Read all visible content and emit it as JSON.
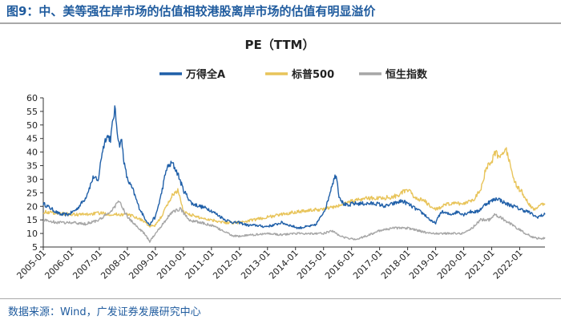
{
  "figure": {
    "title": "图9：中、美等强在岸市场的估值相较港股离岸市场的估值有明显溢价",
    "source": "数据来源：Wind，广发证券发展研究中心"
  },
  "colors": {
    "series_a": "#1f5fa8",
    "series_sp500": "#e8c45a",
    "series_hsi": "#a6a6a6",
    "accent": "#1f5b9e"
  },
  "chart_data": {
    "type": "line",
    "title": "PE（TTM）",
    "xlabel": "",
    "ylabel": "",
    "xlim": [
      2005.0,
      2022.9
    ],
    "ylim": [
      5,
      60
    ],
    "yticks": [
      5,
      10,
      15,
      20,
      25,
      30,
      35,
      40,
      45,
      50,
      55,
      60
    ],
    "xticks": [
      "2005-01",
      "2006-01",
      "2007-01",
      "2008-01",
      "2009-01",
      "2010-01",
      "2011-01",
      "2012-01",
      "2013-01",
      "2014-01",
      "2015-01",
      "2016-01",
      "2017-01",
      "2018-01",
      "2019-01",
      "2020-01",
      "2021-01",
      "2022-01"
    ],
    "grid": false,
    "legend_position": "top",
    "series": [
      {
        "name": "万得全A",
        "x": [
          2005.0,
          2005.3,
          2005.6,
          2005.9,
          2006.2,
          2006.5,
          2006.8,
          2006.95,
          2007.1,
          2007.25,
          2007.4,
          2007.55,
          2007.7,
          2007.8,
          2007.9,
          2008.0,
          2008.2,
          2008.4,
          2008.6,
          2008.8,
          2008.9,
          2009.0,
          2009.2,
          2009.4,
          2009.6,
          2009.8,
          2010.0,
          2010.3,
          2010.6,
          2010.9,
          2011.2,
          2011.5,
          2011.8,
          2012.0,
          2012.3,
          2012.6,
          2012.9,
          2013.2,
          2013.5,
          2013.8,
          2014.1,
          2014.4,
          2014.7,
          2014.9,
          2015.1,
          2015.3,
          2015.45,
          2015.55,
          2015.7,
          2015.9,
          2016.0,
          2016.3,
          2016.6,
          2016.9,
          2017.2,
          2017.5,
          2017.8,
          2018.0,
          2018.3,
          2018.6,
          2018.9,
          2019.0,
          2019.2,
          2019.5,
          2019.8,
          2020.0,
          2020.2,
          2020.5,
          2020.8,
          2021.0,
          2021.2,
          2021.5,
          2021.8,
          2022.0,
          2022.3,
          2022.6,
          2022.9
        ],
        "values": [
          21,
          19,
          17,
          17,
          19,
          23,
          31,
          29,
          40,
          46,
          45,
          56,
          43,
          44,
          35,
          30,
          26,
          20,
          16,
          13,
          15,
          16,
          24,
          34,
          36,
          32,
          26,
          21,
          20,
          19,
          17,
          15,
          14,
          14,
          13,
          13,
          12.5,
          13,
          14,
          13,
          12,
          12.5,
          13,
          16,
          20,
          28,
          32,
          24,
          21,
          20,
          21,
          21,
          21,
          21,
          20,
          21,
          22,
          21,
          19,
          17,
          14,
          14,
          18,
          17,
          18,
          17,
          18,
          18,
          21,
          22,
          23,
          21,
          20,
          19,
          18,
          16,
          17
        ]
      },
      {
        "name": "标普500",
        "x": [
          2005.0,
          2005.5,
          2006.0,
          2006.5,
          2007.0,
          2007.5,
          2008.0,
          2008.3,
          2008.6,
          2008.8,
          2009.0,
          2009.2,
          2009.4,
          2009.6,
          2009.8,
          2010.0,
          2010.5,
          2011.0,
          2011.5,
          2012.0,
          2012.5,
          2013.0,
          2013.5,
          2014.0,
          2014.5,
          2015.0,
          2015.5,
          2016.0,
          2016.5,
          2017.0,
          2017.5,
          2018.0,
          2018.3,
          2018.6,
          2018.9,
          2019.0,
          2019.5,
          2020.0,
          2020.2,
          2020.4,
          2020.6,
          2020.8,
          2021.0,
          2021.1,
          2021.3,
          2021.5,
          2021.7,
          2021.9,
          2022.1,
          2022.3,
          2022.5,
          2022.7,
          2022.9
        ],
        "values": [
          18,
          17.5,
          17,
          17,
          17.5,
          17,
          17,
          16,
          14.5,
          12.5,
          13,
          16,
          20,
          24,
          26,
          18,
          16,
          15,
          14,
          14,
          15,
          16,
          17,
          18,
          18.5,
          19,
          20,
          22,
          23,
          23,
          23.5,
          26,
          23,
          22,
          19,
          19,
          21,
          21,
          22,
          23,
          26,
          34,
          36,
          40,
          38,
          42,
          33,
          27,
          25,
          21,
          19,
          20,
          21
        ]
      },
      {
        "name": "恒生指数",
        "x": [
          2005.0,
          2005.5,
          2006.0,
          2006.5,
          2007.0,
          2007.4,
          2007.7,
          2007.85,
          2008.0,
          2008.3,
          2008.6,
          2008.8,
          2009.0,
          2009.3,
          2009.6,
          2009.9,
          2010.2,
          2010.6,
          2011.0,
          2011.4,
          2011.8,
          2012.0,
          2012.5,
          2013.0,
          2013.5,
          2014.0,
          2014.5,
          2015.0,
          2015.3,
          2015.6,
          2015.9,
          2016.2,
          2016.5,
          2017.0,
          2017.5,
          2018.0,
          2018.4,
          2018.8,
          2019.2,
          2019.6,
          2020.0,
          2020.3,
          2020.6,
          2020.9,
          2021.1,
          2021.3,
          2021.6,
          2021.9,
          2022.2,
          2022.5,
          2022.8,
          2022.9
        ],
        "values": [
          15,
          14,
          14,
          13.5,
          15,
          18,
          22,
          19,
          16,
          13,
          10,
          7,
          10,
          14,
          18,
          19,
          15,
          14,
          13,
          11,
          9,
          9,
          9.5,
          10,
          9.5,
          10,
          10,
          10,
          11,
          9,
          8,
          8,
          9,
          11,
          12,
          12,
          11,
          10,
          10,
          10,
          10,
          12,
          15,
          15,
          17,
          16,
          14,
          12,
          10,
          8.5,
          8,
          8.5
        ]
      }
    ]
  }
}
